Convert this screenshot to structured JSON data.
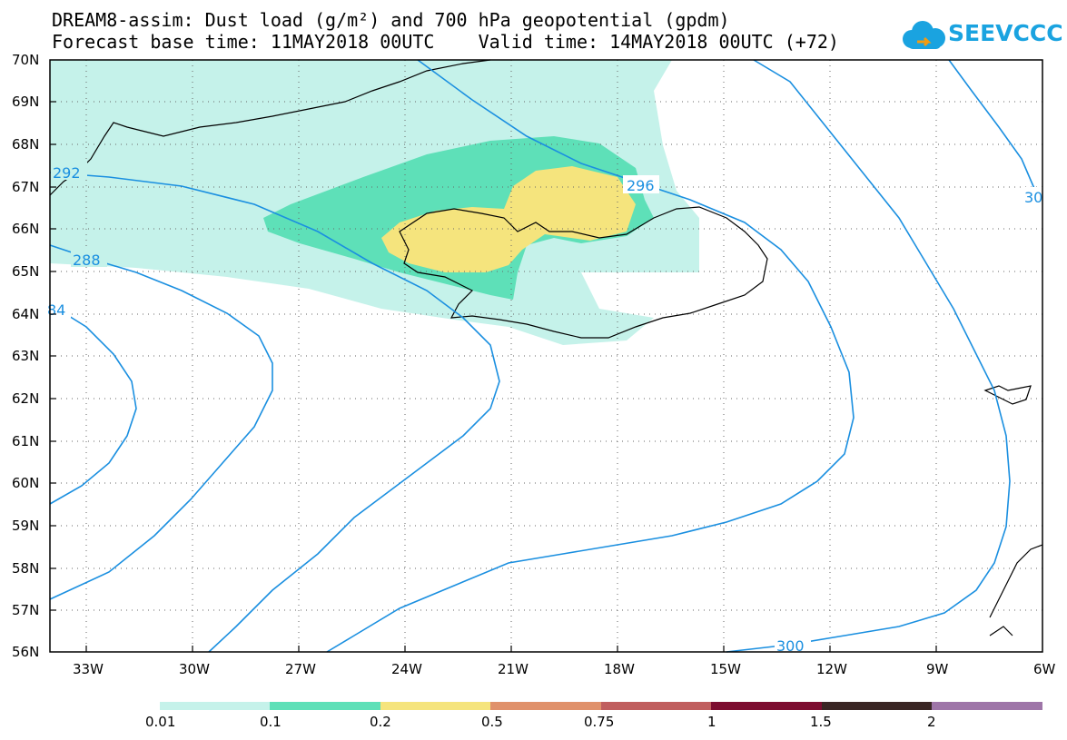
{
  "title_line1": "DREAM8-assim: Dust load (g/m²) and 700 hPa geopotential (gpdm)",
  "title_line2": "Forecast base time: 11MAY2018 00UTC    Valid time: 14MAY2018 00UTC (+72)",
  "logo_text": "SEEVCCC",
  "logo_icon": "cloud-icon",
  "lat_labels": [
    "70N",
    "69N",
    "68N",
    "67N",
    "66N",
    "65N",
    "64N",
    "63N",
    "62N",
    "61N",
    "60N",
    "59N",
    "58N",
    "57N",
    "56N"
  ],
  "lon_labels": [
    "33W",
    "30W",
    "27W",
    "24W",
    "21W",
    "18W",
    "15W",
    "12W",
    "9W",
    "6W"
  ],
  "contour_labels": [
    "292",
    "288",
    "84",
    "296",
    "300",
    "30"
  ],
  "colorbar": {
    "labels": [
      "0.01",
      "0.1",
      "0.2",
      "0.5",
      "0.75",
      "1",
      "1.5",
      "2"
    ],
    "colors": [
      "#c5f2ea",
      "#5ee0b8",
      "#f5e47d",
      "#e0916b",
      "#c05e5e",
      "#7d0d30",
      "#3a2624",
      "#9e75a8"
    ]
  },
  "colors": {
    "contour": "#1a8fe0",
    "dust_low": "#c5f2ea",
    "dust_mid": "#5ee0b8",
    "dust_high": "#f5e47d"
  }
}
